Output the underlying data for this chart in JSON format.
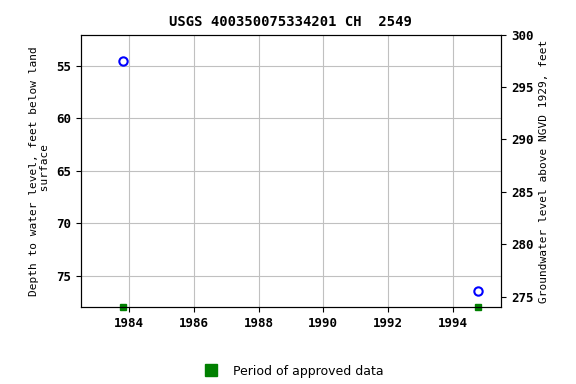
{
  "title": "USGS 400350075334201 CH  2549",
  "points": [
    {
      "year": 1983.8,
      "depth": 54.5
    },
    {
      "year": 1994.8,
      "depth": 76.5
    }
  ],
  "green_bars": [
    {
      "year": 1983.8
    },
    {
      "year": 1994.8
    }
  ],
  "xlim": [
    1982.5,
    1995.5
  ],
  "ylim_left_top": 52,
  "ylim_left_bottom": 78,
  "ylim_right_top": 300,
  "ylim_right_bottom": 274,
  "xticks": [
    1984,
    1986,
    1988,
    1990,
    1992,
    1994
  ],
  "yticks_left": [
    55,
    60,
    65,
    70,
    75
  ],
  "yticks_right": [
    275,
    280,
    285,
    290,
    295,
    300
  ],
  "ylabel_left": "Depth to water level, feet below land\n surface",
  "ylabel_right": "Groundwater level above NGVD 1929, feet",
  "legend_label": "Period of approved data",
  "point_color": "#0000ff",
  "approved_color": "#008000",
  "background_color": "#ffffff",
  "grid_color": "#c0c0c0",
  "font_family": "monospace"
}
